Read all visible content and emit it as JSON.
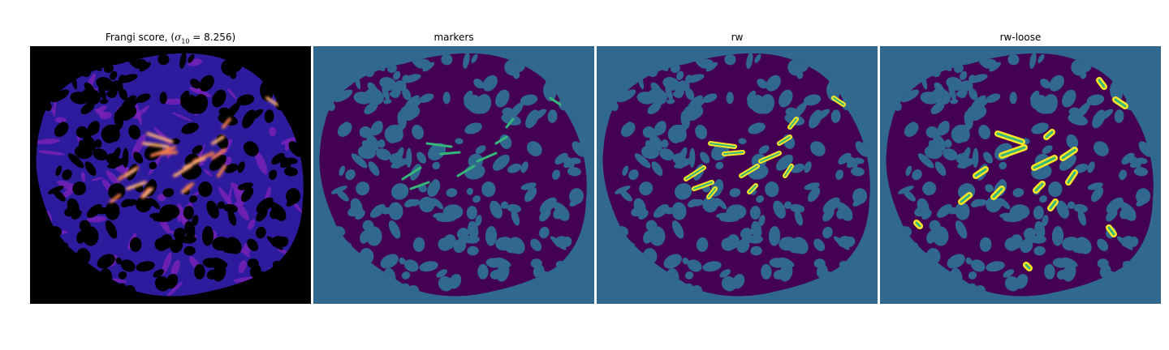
{
  "panels": [
    {
      "id": "frangi",
      "title_prefix": "Frangi score, (",
      "title_symbol": "σ",
      "title_subscript": "10",
      "title_suffix": " = 8.256)",
      "colormap": "magma",
      "colors": {
        "background": "#000000",
        "low": "#2d1b9e",
        "mid": "#7a22b8",
        "high": "#f07a4a",
        "peak": "#fcd9a0"
      }
    },
    {
      "id": "markers",
      "title": "markers",
      "colormap": "viridis",
      "colors": {
        "background": "#31688e",
        "region": "#440154",
        "marker": "#35b779"
      }
    },
    {
      "id": "rw",
      "title": "rw",
      "colormap": "viridis",
      "colors": {
        "background": "#31688e",
        "region": "#440154",
        "inner": "#35b779",
        "outer": "#fde725"
      }
    },
    {
      "id": "rw-loose",
      "title": "rw-loose",
      "colormap": "viridis",
      "colors": {
        "background": "#31688e",
        "region": "#440154",
        "inner": "#35b779",
        "outer": "#fde725"
      }
    }
  ]
}
